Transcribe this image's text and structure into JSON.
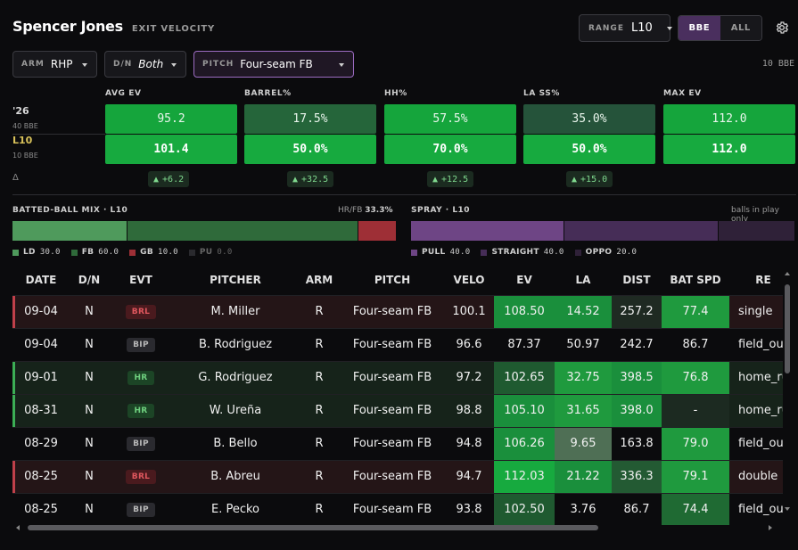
{
  "header": {
    "player_name": "Spencer Jones",
    "subtitle": "EXIT VELOCITY"
  },
  "range": {
    "label": "RANGE",
    "value": "L10"
  },
  "toggle": {
    "bbe": "BBE",
    "all": "ALL",
    "active": "BBE"
  },
  "filters": {
    "arm": {
      "label": "ARM",
      "value": "RHP"
    },
    "dn": {
      "label": "D/N",
      "value": "Both"
    },
    "pitch": {
      "label": "PITCH",
      "value": "Four-seam FB"
    },
    "bbe_count": "10 BBE"
  },
  "rows": {
    "season_label": "'26",
    "season_sub": "40 BBE",
    "l10_label": "L10",
    "l10_sub": "10 BBE",
    "delta_label": "Δ"
  },
  "metrics": [
    {
      "label": "AVG EV",
      "season": "95.2",
      "l10": "101.4",
      "delta": "+6.2",
      "season_color": "#15a53c",
      "l10_color": "#17aa3f"
    },
    {
      "label": "BARREL%",
      "season": "17.5%",
      "l10": "50.0%",
      "delta": "+32.5",
      "season_color": "#25653a",
      "l10_color": "#17aa3f"
    },
    {
      "label": "HH%",
      "season": "57.5%",
      "l10": "70.0%",
      "delta": "+12.5",
      "season_color": "#15a53c",
      "l10_color": "#17aa3f"
    },
    {
      "label": "LA SS%",
      "season": "35.0%",
      "l10": "50.0%",
      "delta": "+15.0",
      "season_color": "#25533a",
      "l10_color": "#17aa3f"
    },
    {
      "label": "MAX EV",
      "season": "112.0",
      "l10": "112.0",
      "delta": "",
      "season_color": "#15a53c",
      "l10_color": "#17aa3f"
    }
  ],
  "batted_ball_mix": {
    "title": "BATTED-BALL MIX · L10",
    "hrfb_label": "HR/FB",
    "hrfb_value": "33.3%",
    "segments": [
      {
        "label": "LD",
        "value": 30.0,
        "value_text": "30.0",
        "color": "#4f9a5c"
      },
      {
        "label": "FB",
        "value": 60.0,
        "value_text": "60.0",
        "color": "#2f6a3a"
      },
      {
        "label": "GB",
        "value": 10.0,
        "value_text": "10.0",
        "color": "#9e2f36"
      },
      {
        "label": "PU",
        "value": 0.0,
        "value_text": "0.0",
        "color": "#2a2a2e"
      }
    ]
  },
  "spray": {
    "title": "SPRAY · L10",
    "note": "balls in play only",
    "segments": [
      {
        "label": "PULL",
        "value": 40.0,
        "value_text": "40.0",
        "color": "#6e4585"
      },
      {
        "label": "STRAIGHT",
        "value": 40.0,
        "value_text": "40.0",
        "color": "#462d57"
      },
      {
        "label": "OPPO",
        "value": 20.0,
        "value_text": "20.0",
        "color": "#2f2138"
      }
    ]
  },
  "table": {
    "columns": [
      "DATE",
      "D/N",
      "EVT",
      "PITCHER",
      "ARM",
      "PITCH",
      "VELO",
      "EV",
      "LA",
      "DIST",
      "BAT SPD",
      "RE"
    ],
    "rows": [
      {
        "type": "BRL",
        "cells": [
          "09-04",
          "N",
          "BRL",
          "M. Miller",
          "R",
          "Four-seam FB",
          "100.1",
          "108.50",
          "14.52",
          "257.2",
          "77.4",
          "single"
        ],
        "colors": {
          "ev": "#1a8f3c",
          "la": "#1a8f3c",
          "dist": "#1f2a22",
          "bat": "#1f9a3e"
        }
      },
      {
        "type": "BIP",
        "cells": [
          "09-04",
          "N",
          "BIP",
          "B. Rodriguez",
          "R",
          "Four-seam FB",
          "96.6",
          "87.37",
          "50.97",
          "242.7",
          "86.7",
          "field_out"
        ],
        "colors": {
          "ev": "",
          "la": "",
          "dist": "",
          "bat": ""
        }
      },
      {
        "type": "HR",
        "cells": [
          "09-01",
          "N",
          "HR",
          "G. Rodriguez",
          "R",
          "Four-seam FB",
          "97.2",
          "102.65",
          "32.75",
          "398.5",
          "76.8",
          "home_run"
        ],
        "colors": {
          "ev": "#1f5a30",
          "la": "#1f9a3e",
          "dist": "#1a8f3c",
          "bat": "#1f9a3e"
        }
      },
      {
        "type": "HR",
        "cells": [
          "08-31",
          "N",
          "HR",
          "W. Ureña",
          "R",
          "Four-seam FB",
          "98.8",
          "105.10",
          "31.65",
          "398.0",
          "-",
          "home_run"
        ],
        "colors": {
          "ev": "#1a8f3c",
          "la": "#1f9a3e",
          "dist": "#1a8f3c",
          "bat": "#1c2a21"
        }
      },
      {
        "type": "BIP",
        "cells": [
          "08-29",
          "N",
          "BIP",
          "B. Bello",
          "R",
          "Four-seam FB",
          "94.8",
          "106.26",
          "9.65",
          "163.8",
          "79.0",
          "field_out"
        ],
        "colors": {
          "ev": "#1a8f3c",
          "la": "#4f6f55",
          "dist": "",
          "bat": "#1f9a3e"
        }
      },
      {
        "type": "BRL",
        "cells": [
          "08-25",
          "N",
          "BRL",
          "B. Abreu",
          "R",
          "Four-seam FB",
          "94.7",
          "112.03",
          "21.22",
          "336.3",
          "79.1",
          "double"
        ],
        "colors": {
          "ev": "#17aa3f",
          "la": "#1a8f3c",
          "dist": "#235a33",
          "bat": "#1f9a3e"
        }
      },
      {
        "type": "BIP",
        "cells": [
          "08-25",
          "N",
          "BIP",
          "E. Pecko",
          "R",
          "Four-seam FB",
          "93.8",
          "102.50",
          "3.76",
          "86.7",
          "74.4",
          "field_out"
        ],
        "colors": {
          "ev": "#1f5a30",
          "la": "",
          "dist": "",
          "bat": "#1f6a33"
        }
      }
    ]
  }
}
